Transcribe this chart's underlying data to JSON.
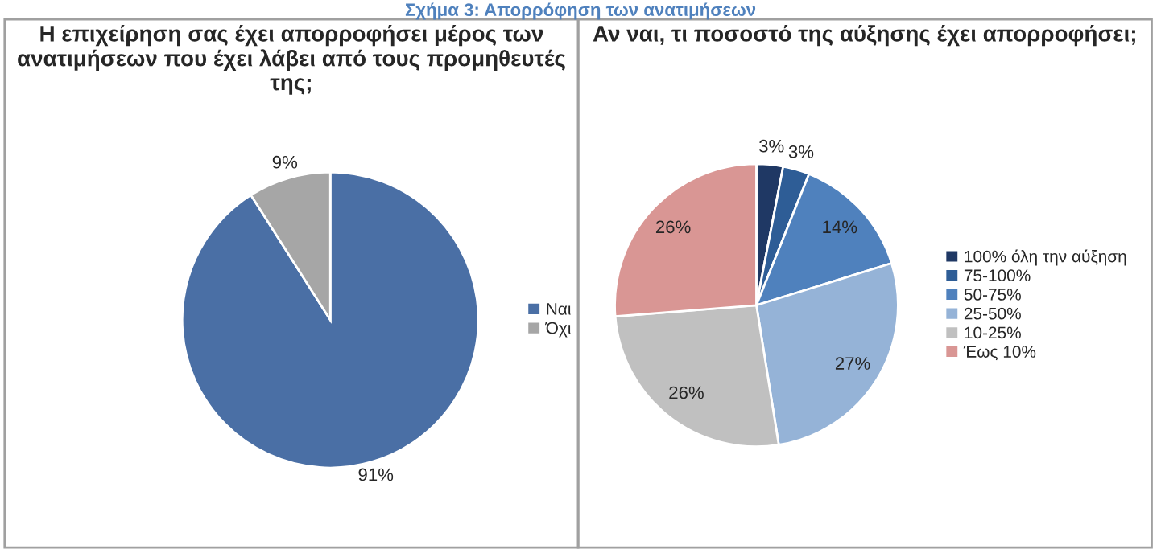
{
  "chart_data": [
    {
      "type": "pie",
      "title": "Η επιχείρηση σας έχει απορροφήσει μέρος των ανατιμήσεων που έχει λάβει από τους προμηθευτές της;",
      "annotations": [
        "Σχήμα 3: Απορρόφηση των ανατιμήσεων"
      ],
      "categories": [
        "Ναι",
        "Όχι"
      ],
      "values": [
        91,
        9
      ],
      "colors": [
        "#4a6fa5",
        "#a6a6a6"
      ],
      "value_labels": [
        "91%",
        "9%"
      ],
      "legend": "right"
    },
    {
      "type": "pie",
      "title": "Αν ναι, τι ποσοστό της αύξησης έχει απορροφήσει;",
      "categories": [
        "100% όλη την αύξηση",
        "75-100%",
        "50-75%",
        "25-50%",
        "10-25%",
        "Έως 10%"
      ],
      "values": [
        3,
        3,
        14,
        27,
        26,
        26
      ],
      "colors": [
        "#1f3864",
        "#2e5d96",
        "#4f81bd",
        "#95b3d7",
        "#c0c0c0",
        "#d99694"
      ],
      "value_labels": [
        "3%",
        "3%",
        "14%",
        "27%",
        "26%",
        "26%"
      ],
      "legend": "right"
    }
  ]
}
